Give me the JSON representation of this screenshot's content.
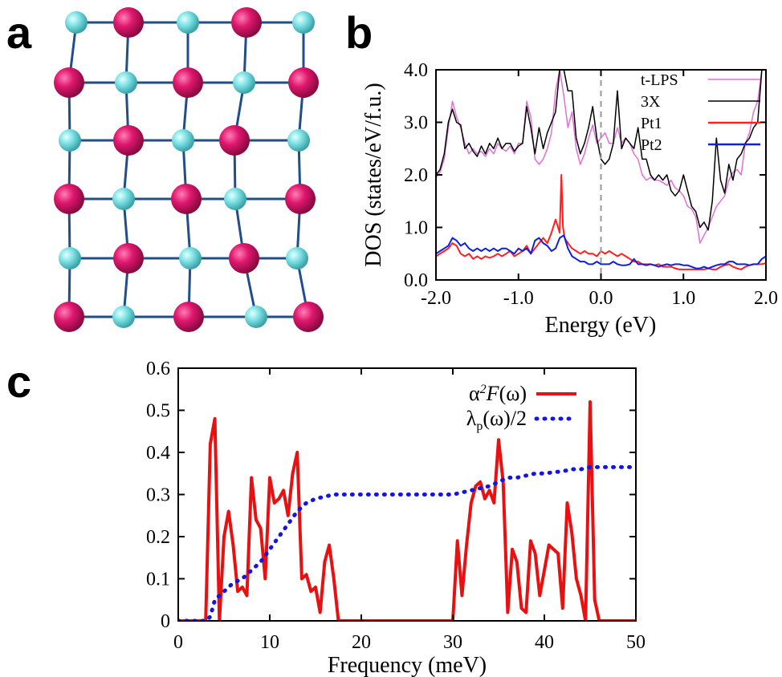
{
  "panels": {
    "a": {
      "letter": "a"
    },
    "b": {
      "letter": "b"
    },
    "c": {
      "letter": "c"
    }
  },
  "colors": {
    "magenta_atom": "#e0176e",
    "cyan_atom": "#7fe3e6",
    "bond": "#1f4f86",
    "tlps": "#e070d8",
    "x3": "#000000",
    "pt1": "#ff2020",
    "pt2": "#1020e0",
    "a2f": "#e81010",
    "lambda": "#1515e0",
    "fermi_line": "#999999"
  },
  "chart_data": [
    {
      "panel": "a",
      "type": "other",
      "lattice": {
        "rows": 6,
        "cols": 5,
        "pattern": [
          [
            "cyan",
            "magenta",
            "cyan",
            "magenta",
            "cyan"
          ],
          [
            "magenta",
            "cyan",
            "magenta",
            "cyan",
            "magenta"
          ],
          [
            "cyan",
            "magenta",
            "cyan",
            "magenta",
            "cyan"
          ],
          [
            "magenta",
            "cyan",
            "magenta",
            "cyan",
            "magenta"
          ],
          [
            "cyan",
            "magenta",
            "cyan",
            "magenta",
            "cyan"
          ],
          [
            "magenta",
            "cyan",
            "magenta",
            "cyan",
            "magenta"
          ]
        ]
      }
    },
    {
      "panel": "b",
      "type": "line",
      "xlabel": "Energy (eV)",
      "ylabel": "DOS (states/eV/f.u.)",
      "xlim": [
        -2.0,
        2.0
      ],
      "ylim": [
        0.0,
        4.0
      ],
      "xticks": [
        "-2.0",
        "-1.0",
        "0.0",
        "1.0",
        "2.0"
      ],
      "yticks": [
        "0.0",
        "1.0",
        "2.0",
        "3.0",
        "4.0"
      ],
      "fermi_level": 0.0,
      "legend_position": "top-right",
      "series": [
        {
          "name": "t-LPS",
          "color_key": "tlps",
          "x": [
            -2.0,
            -1.95,
            -1.9,
            -1.85,
            -1.8,
            -1.75,
            -1.7,
            -1.65,
            -1.6,
            -1.55,
            -1.5,
            -1.45,
            -1.4,
            -1.35,
            -1.3,
            -1.25,
            -1.2,
            -1.15,
            -1.1,
            -1.05,
            -1.0,
            -0.95,
            -0.9,
            -0.85,
            -0.8,
            -0.75,
            -0.7,
            -0.65,
            -0.6,
            -0.55,
            -0.5,
            -0.45,
            -0.4,
            -0.35,
            -0.3,
            -0.25,
            -0.2,
            -0.15,
            -0.1,
            -0.05,
            0.0,
            0.05,
            0.1,
            0.15,
            0.2,
            0.25,
            0.3,
            0.35,
            0.4,
            0.45,
            0.5,
            0.55,
            0.6,
            0.65,
            0.7,
            0.75,
            0.8,
            0.85,
            0.9,
            0.95,
            1.0,
            1.05,
            1.1,
            1.15,
            1.2,
            1.25,
            1.3,
            1.35,
            1.4,
            1.45,
            1.5,
            1.55,
            1.6,
            1.65,
            1.7,
            1.75,
            1.8,
            1.85,
            1.9,
            1.95,
            2.0
          ],
          "y": [
            1.95,
            2.05,
            2.3,
            2.9,
            3.4,
            3.1,
            2.9,
            2.6,
            2.4,
            2.5,
            2.4,
            2.45,
            2.35,
            2.5,
            2.4,
            2.6,
            2.5,
            2.45,
            2.55,
            2.4,
            2.6,
            2.6,
            3.4,
            3.1,
            2.3,
            2.2,
            2.3,
            2.5,
            2.8,
            3.6,
            4.0,
            3.5,
            2.9,
            3.2,
            2.5,
            2.2,
            2.4,
            2.7,
            2.95,
            2.6,
            2.7,
            2.8,
            2.6,
            2.6,
            2.9,
            2.6,
            2.7,
            2.6,
            2.4,
            2.3,
            2.0,
            1.9,
            1.95,
            1.9,
            1.9,
            1.85,
            1.8,
            1.9,
            1.75,
            1.7,
            1.6,
            1.4,
            1.35,
            1.2,
            0.7,
            0.85,
            1.0,
            1.2,
            1.4,
            1.5,
            1.6,
            1.9,
            2.05,
            2.1,
            2.0,
            2.6,
            2.8,
            3.2,
            3.4,
            4.0,
            4.0
          ]
        },
        {
          "name": "3X",
          "color_key": "x3",
          "x": [
            -2.0,
            -1.95,
            -1.9,
            -1.85,
            -1.8,
            -1.75,
            -1.7,
            -1.65,
            -1.6,
            -1.55,
            -1.5,
            -1.45,
            -1.4,
            -1.35,
            -1.3,
            -1.25,
            -1.2,
            -1.15,
            -1.1,
            -1.05,
            -1.0,
            -0.95,
            -0.9,
            -0.85,
            -0.8,
            -0.75,
            -0.7,
            -0.65,
            -0.6,
            -0.55,
            -0.5,
            -0.45,
            -0.4,
            -0.35,
            -0.3,
            -0.25,
            -0.2,
            -0.15,
            -0.1,
            -0.05,
            0.0,
            0.05,
            0.1,
            0.15,
            0.2,
            0.25,
            0.3,
            0.35,
            0.4,
            0.45,
            0.5,
            0.55,
            0.6,
            0.65,
            0.7,
            0.75,
            0.8,
            0.85,
            0.9,
            0.95,
            1.0,
            1.05,
            1.1,
            1.15,
            1.2,
            1.25,
            1.3,
            1.35,
            1.4,
            1.45,
            1.5,
            1.55,
            1.6,
            1.65,
            1.7,
            1.75,
            1.8,
            1.85,
            1.9,
            1.95,
            2.0
          ],
          "y": [
            2.0,
            2.1,
            2.4,
            3.0,
            3.25,
            3.0,
            2.95,
            2.5,
            2.6,
            2.45,
            2.35,
            2.55,
            2.4,
            2.6,
            2.5,
            2.7,
            2.5,
            2.6,
            2.6,
            2.45,
            2.55,
            2.6,
            3.3,
            2.9,
            2.4,
            2.9,
            2.5,
            2.8,
            3.0,
            3.2,
            4.0,
            4.0,
            3.6,
            3.6,
            2.7,
            2.4,
            2.6,
            2.9,
            3.3,
            2.7,
            2.3,
            2.2,
            2.3,
            2.6,
            3.6,
            2.5,
            2.7,
            2.6,
            2.5,
            2.9,
            2.3,
            2.3,
            2.0,
            1.9,
            2.0,
            1.9,
            2.0,
            1.7,
            1.6,
            1.7,
            2.0,
            1.7,
            1.4,
            1.3,
            1.0,
            1.1,
            0.95,
            1.5,
            2.7,
            1.9,
            1.65,
            2.2,
            1.9,
            2.3,
            2.4,
            2.6,
            2.7,
            2.9,
            3.0,
            4.0,
            4.0
          ]
        },
        {
          "name": "Pt1",
          "color_key": "pt1",
          "x": [
            -2.0,
            -1.95,
            -1.9,
            -1.85,
            -1.8,
            -1.75,
            -1.7,
            -1.65,
            -1.6,
            -1.55,
            -1.5,
            -1.45,
            -1.4,
            -1.35,
            -1.3,
            -1.25,
            -1.2,
            -1.15,
            -1.1,
            -1.05,
            -1.0,
            -0.95,
            -0.9,
            -0.85,
            -0.8,
            -0.75,
            -0.7,
            -0.65,
            -0.6,
            -0.55,
            -0.5,
            -0.48,
            -0.46,
            -0.44,
            -0.42,
            -0.4,
            -0.35,
            -0.3,
            -0.25,
            -0.2,
            -0.15,
            -0.1,
            -0.05,
            0.0,
            0.05,
            0.1,
            0.15,
            0.2,
            0.25,
            0.3,
            0.35,
            0.4,
            0.45,
            0.5,
            0.55,
            0.6,
            0.65,
            0.7,
            0.75,
            0.8,
            0.85,
            0.9,
            0.95,
            1.0,
            1.05,
            1.1,
            1.15,
            1.2,
            1.25,
            1.3,
            1.35,
            1.4,
            1.45,
            1.5,
            1.55,
            1.6,
            1.65,
            1.7,
            1.75,
            1.8,
            1.85,
            1.9,
            1.95,
            2.0
          ],
          "y": [
            0.45,
            0.5,
            0.55,
            0.6,
            0.7,
            0.65,
            0.5,
            0.45,
            0.5,
            0.4,
            0.45,
            0.4,
            0.45,
            0.42,
            0.45,
            0.5,
            0.45,
            0.5,
            0.55,
            0.45,
            0.5,
            0.55,
            0.65,
            0.5,
            0.6,
            0.7,
            0.8,
            0.7,
            0.9,
            1.15,
            0.9,
            2.0,
            1.0,
            0.8,
            0.75,
            0.7,
            0.6,
            0.55,
            0.5,
            0.55,
            0.5,
            0.5,
            0.45,
            0.55,
            0.5,
            0.55,
            0.5,
            0.45,
            0.5,
            0.45,
            0.4,
            0.35,
            0.35,
            0.3,
            0.3,
            0.3,
            0.28,
            0.3,
            0.25,
            0.25,
            0.25,
            0.22,
            0.2,
            0.2,
            0.2,
            0.2,
            0.2,
            0.2,
            0.2,
            0.22,
            0.2,
            0.2,
            0.25,
            0.28,
            0.3,
            0.25,
            0.22,
            0.2,
            0.25,
            0.28,
            0.3,
            0.3,
            0.3,
            0.32
          ]
        },
        {
          "name": "Pt2",
          "color_key": "pt2",
          "x": [
            -2.0,
            -1.95,
            -1.9,
            -1.85,
            -1.8,
            -1.75,
            -1.7,
            -1.65,
            -1.6,
            -1.55,
            -1.5,
            -1.45,
            -1.4,
            -1.35,
            -1.3,
            -1.25,
            -1.2,
            -1.15,
            -1.1,
            -1.05,
            -1.0,
            -0.95,
            -0.9,
            -0.85,
            -0.8,
            -0.75,
            -0.7,
            -0.65,
            -0.6,
            -0.55,
            -0.5,
            -0.45,
            -0.4,
            -0.35,
            -0.3,
            -0.25,
            -0.2,
            -0.15,
            -0.1,
            -0.05,
            0.0,
            0.05,
            0.1,
            0.15,
            0.2,
            0.25,
            0.3,
            0.35,
            0.4,
            0.45,
            0.5,
            0.55,
            0.6,
            0.65,
            0.7,
            0.75,
            0.8,
            0.85,
            0.9,
            0.95,
            1.0,
            1.05,
            1.1,
            1.15,
            1.2,
            1.25,
            1.3,
            1.35,
            1.4,
            1.45,
            1.5,
            1.55,
            1.6,
            1.65,
            1.7,
            1.75,
            1.8,
            1.85,
            1.9,
            1.95,
            2.0
          ],
          "y": [
            0.5,
            0.55,
            0.6,
            0.65,
            0.8,
            0.75,
            0.65,
            0.7,
            0.6,
            0.55,
            0.6,
            0.55,
            0.6,
            0.55,
            0.6,
            0.55,
            0.6,
            0.6,
            0.55,
            0.5,
            0.6,
            0.55,
            0.6,
            0.5,
            0.75,
            0.8,
            0.7,
            0.65,
            0.55,
            0.6,
            0.8,
            0.85,
            0.6,
            0.45,
            0.4,
            0.35,
            0.35,
            0.3,
            0.3,
            0.35,
            0.3,
            0.3,
            0.3,
            0.35,
            0.3,
            0.28,
            0.28,
            0.3,
            0.4,
            0.3,
            0.3,
            0.28,
            0.3,
            0.28,
            0.25,
            0.28,
            0.3,
            0.28,
            0.3,
            0.3,
            0.28,
            0.28,
            0.25,
            0.22,
            0.22,
            0.25,
            0.22,
            0.25,
            0.28,
            0.3,
            0.3,
            0.35,
            0.35,
            0.3,
            0.3,
            0.3,
            0.28,
            0.3,
            0.3,
            0.4,
            0.45
          ]
        }
      ]
    },
    {
      "panel": "c",
      "type": "line",
      "xlabel": "Frequency (meV)",
      "ylabel": "",
      "xlim": [
        0,
        50
      ],
      "ylim": [
        0,
        0.6
      ],
      "xticks": [
        "0",
        "10",
        "20",
        "30",
        "40",
        "50"
      ],
      "yticks": [
        "0",
        "0.1",
        "0.2",
        "0.3",
        "0.4",
        "0.5",
        "0.6"
      ],
      "legend_position": "top-right",
      "legend_labels": [
        {
          "prefix": "α",
          "sup": "2",
          "main": "F",
          "suffix": "(ω)",
          "color_key": "a2f",
          "style": "solid"
        },
        {
          "prefix": "λ",
          "sub": "p",
          "suffix": "(ω)/2",
          "color_key": "lambda",
          "style": "dotted"
        }
      ],
      "series": [
        {
          "name": "α2F(ω)",
          "color_key": "a2f",
          "x": [
            0,
            1,
            2,
            3,
            3.5,
            4,
            4.5,
            5,
            5.5,
            6,
            6.5,
            7,
            7.5,
            8,
            8.5,
            9,
            9.5,
            10,
            10.5,
            11,
            11.5,
            12,
            12.5,
            13,
            13.5,
            14,
            14.5,
            15,
            15.5,
            16,
            16.5,
            17,
            17.5,
            18,
            19,
            20,
            25,
            29,
            30,
            30.5,
            31,
            31.5,
            32,
            32.5,
            33,
            33.5,
            34,
            34.5,
            35,
            35.5,
            36,
            36.5,
            37,
            37.5,
            38,
            38.5,
            39,
            39.5,
            40,
            40.5,
            41,
            41.5,
            42,
            42.5,
            43,
            43.5,
            44,
            44.5,
            45,
            45.5,
            46,
            47,
            48,
            49,
            50
          ],
          "y": [
            0,
            0,
            0,
            0,
            0.42,
            0.48,
            0,
            0.2,
            0.26,
            0.18,
            0.07,
            0.08,
            0.06,
            0.34,
            0.24,
            0.22,
            0.1,
            0.34,
            0.28,
            0.29,
            0.31,
            0.25,
            0.35,
            0.4,
            0.1,
            0.11,
            0.07,
            0.08,
            0.02,
            0.14,
            0.18,
            0.1,
            0,
            0,
            0,
            0,
            0,
            0,
            0,
            0.19,
            0.06,
            0.18,
            0.28,
            0.32,
            0.33,
            0.29,
            0.31,
            0.28,
            0.43,
            0.33,
            0.02,
            0.17,
            0.14,
            0.03,
            0.02,
            0.19,
            0.16,
            0.06,
            0.12,
            0.18,
            0.17,
            0.16,
            0.03,
            0.28,
            0.21,
            0.1,
            0.06,
            0,
            0.52,
            0.05,
            0,
            0,
            0,
            0,
            0
          ]
        },
        {
          "name": "λp(ω)/2",
          "color_key": "lambda",
          "x": [
            0,
            1,
            2,
            3,
            3.5,
            4,
            5,
            6,
            7,
            8,
            9,
            10,
            11,
            12,
            13,
            14,
            15,
            16,
            17,
            18,
            20,
            25,
            29,
            30,
            31,
            32,
            33,
            34,
            35,
            36,
            37,
            38,
            39,
            40,
            41,
            42,
            43,
            44,
            45,
            46,
            47,
            48,
            49,
            50
          ],
          "y": [
            0,
            0,
            0,
            0,
            0.01,
            0.05,
            0.07,
            0.09,
            0.1,
            0.12,
            0.14,
            0.17,
            0.2,
            0.23,
            0.26,
            0.28,
            0.29,
            0.295,
            0.3,
            0.3,
            0.3,
            0.3,
            0.3,
            0.3,
            0.305,
            0.31,
            0.315,
            0.32,
            0.33,
            0.34,
            0.34,
            0.345,
            0.35,
            0.35,
            0.353,
            0.355,
            0.36,
            0.36,
            0.365,
            0.365,
            0.365,
            0.365,
            0.365,
            0.365
          ]
        }
      ]
    }
  ]
}
